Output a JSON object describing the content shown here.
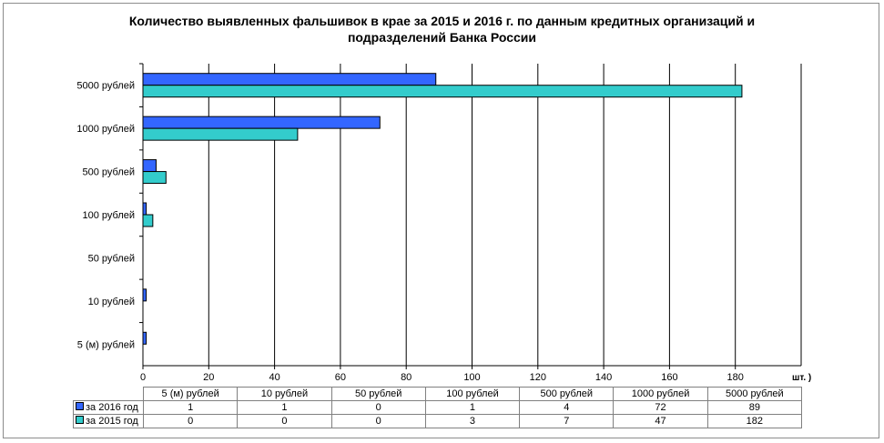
{
  "chart_data": {
    "type": "bar",
    "orientation": "horizontal",
    "title": "Количество выявленных фальшивок в крае за 2015 и 2016 г. по данным кредитных организаций и подразделений Банка России",
    "title_lines": [
      "Количество выявленных фальшивок в крае за 2015 и 2016 г. по данным кредитных организаций и",
      "подразделений Банка России"
    ],
    "categories": [
      "5 (м) рублей",
      "10 рублей",
      "50 рублей",
      "100 рублей",
      "500 рублей",
      "1000 рублей",
      "5000 рублей"
    ],
    "series": [
      {
        "name": "за 2016 год",
        "color": "#3366ff",
        "values": [
          1,
          1,
          0,
          1,
          4,
          72,
          89
        ]
      },
      {
        "name": "за 2015 год",
        "color": "#33cccc",
        "values": [
          0,
          0,
          0,
          3,
          7,
          47,
          182
        ]
      }
    ],
    "xlim": [
      0,
      200
    ],
    "xticks": [
      0,
      20,
      40,
      60,
      80,
      100,
      120,
      140,
      160,
      180
    ],
    "unit_label": "шт. )",
    "grid": true,
    "legend": "data-table"
  }
}
